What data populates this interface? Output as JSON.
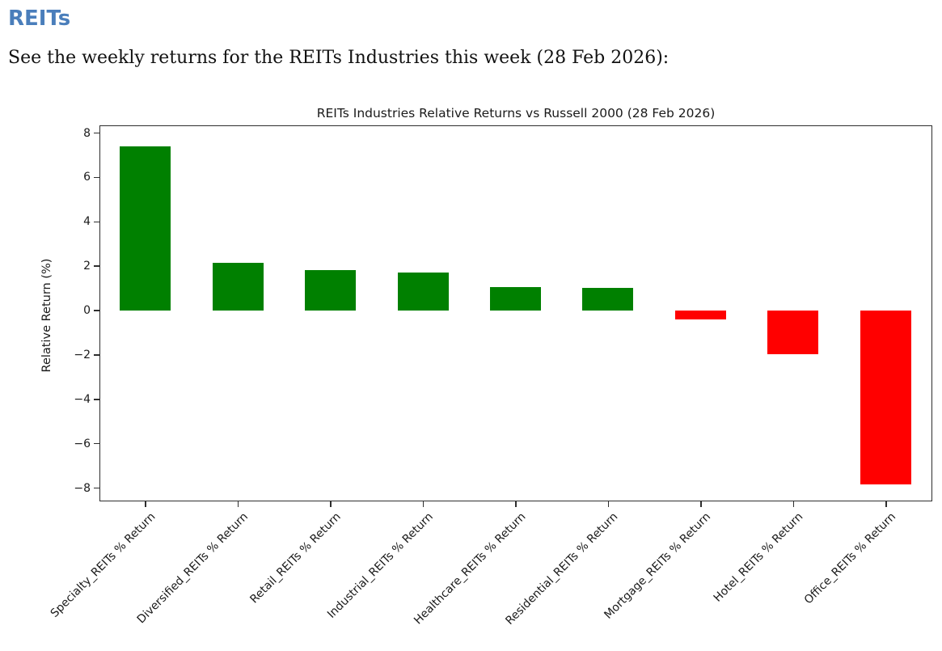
{
  "page": {
    "heading": "REITs",
    "subtitle": "See the weekly returns for the REITs Industries this week (28 Feb 2026):"
  },
  "colors": {
    "heading_text": "#4a7ebb",
    "positive_bar": "#008000",
    "negative_bar": "#ff0000",
    "axis_text": "#1a1a1a"
  },
  "chart_data": {
    "type": "bar",
    "title": "REITs Industries Relative Returns vs Russell 2000 (28 Feb 2026)",
    "xlabel": "",
    "ylabel": "Relative Return (%)",
    "categories": [
      "Specialty_REITs % Return",
      "Diversified_REITs % Return",
      "Retail_REITs % Return",
      "Industrial_REITs % Return",
      "Healthcare_REITs % Return",
      "Residential_REITs % Return",
      "Mortgage_REITs % Return",
      "Hotel_REITs % Return",
      "Office_REITs % Return"
    ],
    "values": [
      7.4,
      2.15,
      1.8,
      1.7,
      1.05,
      1.0,
      -0.4,
      -2.0,
      -7.85
    ],
    "yticks": [
      8,
      6,
      4,
      2,
      0,
      -2,
      -4,
      -6,
      -8
    ],
    "ylim": [
      -8.6,
      8.35
    ],
    "grid": false,
    "positive_color": "#008000",
    "negative_color": "#ff0000"
  }
}
